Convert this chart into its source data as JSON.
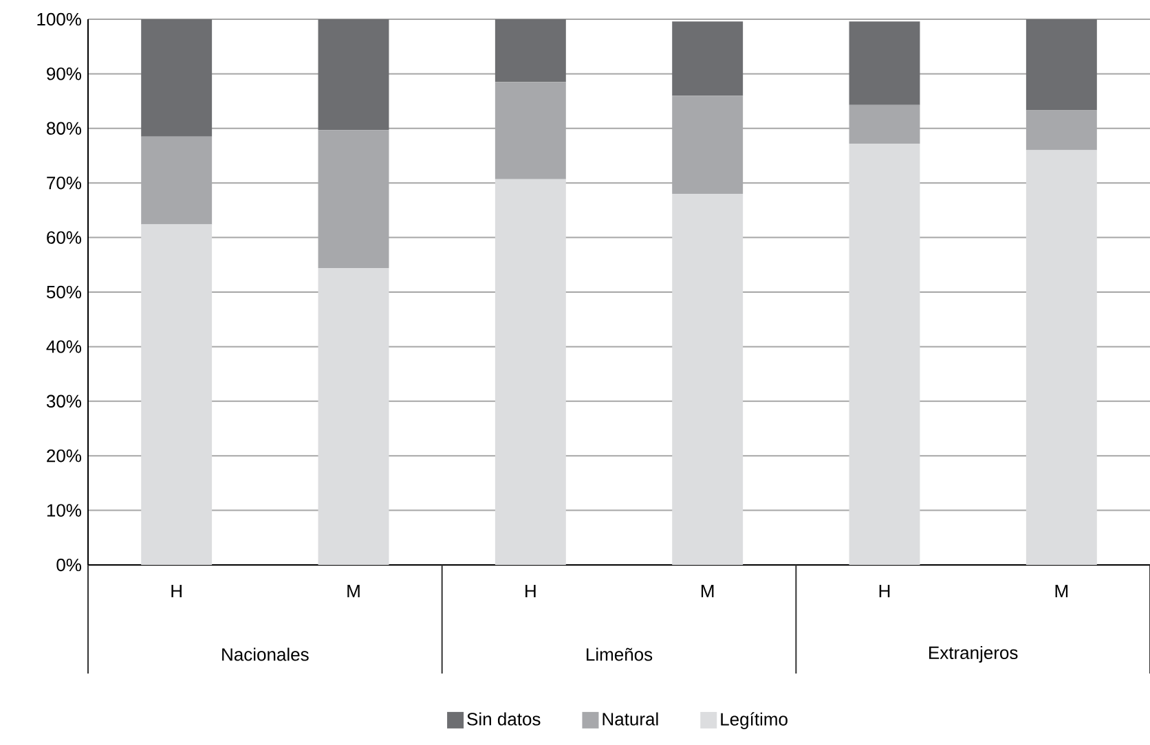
{
  "chart_data": {
    "type": "bar",
    "stacked": true,
    "categories": [
      "H",
      "M",
      "H",
      "M",
      "H",
      "M"
    ],
    "series": [
      {
        "name": "Legítimo",
        "color": "#dcdddf",
        "values": [
          62.4,
          54.4,
          70.7,
          68.0,
          77.2,
          76.0
        ]
      },
      {
        "name": "Natural",
        "color": "#a7a8ab",
        "values": [
          16.1,
          25.3,
          17.8,
          18.0,
          7.1,
          7.3
        ]
      },
      {
        "name": "Sin datos",
        "color": "#6d6e71",
        "values": [
          21.5,
          20.3,
          11.5,
          13.6,
          15.3,
          16.7
        ]
      }
    ],
    "annotations": [
      "Nacionales",
      "Limeños",
      "Extranjeros"
    ],
    "ylim": [
      0,
      100
    ],
    "yticks": [
      {
        "value": 0,
        "label": "0%"
      },
      {
        "value": 10,
        "label": "10%"
      },
      {
        "value": 20,
        "label": "20%"
      },
      {
        "value": 30,
        "label": "30%"
      },
      {
        "value": 40,
        "label": "40%"
      },
      {
        "value": 50,
        "label": "50%"
      },
      {
        "value": 60,
        "label": "60%"
      },
      {
        "value": 70,
        "label": "70%"
      },
      {
        "value": 80,
        "label": "80%"
      },
      {
        "value": 90,
        "label": "90%"
      },
      {
        "value": 100,
        "label": "100%"
      }
    ],
    "grid": "y",
    "legend": "bottom"
  }
}
